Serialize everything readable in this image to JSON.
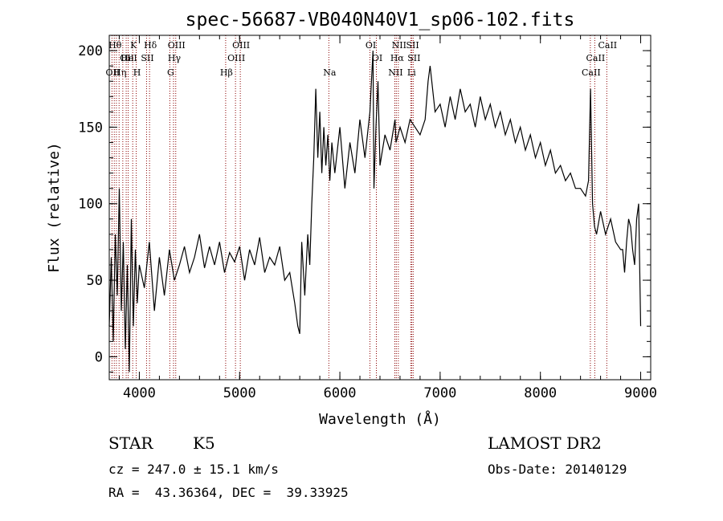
{
  "chart_data": {
    "type": "line",
    "title": "spec-56687-VB040N40V1_sp06-102.fits",
    "xlabel": "Wavelength (Å)",
    "ylabel": "Flux (relative)",
    "xlim": [
      3700,
      9100
    ],
    "ylim": [
      -15,
      210
    ],
    "xticks": [
      4000,
      5000,
      6000,
      7000,
      8000,
      9000
    ],
    "yticks": [
      0,
      50,
      100,
      150,
      200
    ],
    "grid": false,
    "series": [
      {
        "x": [
          3700,
          3720,
          3740,
          3760,
          3780,
          3800,
          3820,
          3840,
          3860,
          3880,
          3900,
          3920,
          3940,
          3960,
          3980,
          4000,
          4050,
          4100,
          4150,
          4200,
          4250,
          4300,
          4350,
          4400,
          4450,
          4500,
          4550,
          4600,
          4650,
          4700,
          4750,
          4800,
          4850,
          4900,
          4950,
          5000,
          5050,
          5100,
          5150,
          5200,
          5250,
          5300,
          5350,
          5400,
          5450,
          5500,
          5550,
          5580,
          5600,
          5620,
          5650,
          5680,
          5700,
          5720,
          5740,
          5760,
          5780,
          5800,
          5820,
          5840,
          5860,
          5880,
          5900,
          5920,
          5950,
          6000,
          6050,
          6100,
          6150,
          6200,
          6250,
          6300,
          6330,
          6340,
          6360,
          6380,
          6400,
          6450,
          6500,
          6550,
          6560,
          6600,
          6650,
          6700,
          6750,
          6800,
          6850,
          6880,
          6900,
          6950,
          7000,
          7050,
          7100,
          7150,
          7200,
          7250,
          7300,
          7350,
          7400,
          7450,
          7500,
          7550,
          7600,
          7650,
          7700,
          7750,
          7800,
          7850,
          7900,
          7950,
          8000,
          8050,
          8100,
          8150,
          8200,
          8250,
          8300,
          8350,
          8400,
          8450,
          8480,
          8500,
          8520,
          8540,
          8560,
          8600,
          8650,
          8700,
          8750,
          8800,
          8820,
          8840,
          8860,
          8880,
          8900,
          8920,
          8940,
          8960,
          8980,
          9000
        ],
        "y": [
          20,
          65,
          10,
          80,
          40,
          110,
          30,
          75,
          5,
          60,
          -10,
          90,
          20,
          70,
          35,
          60,
          45,
          75,
          30,
          65,
          40,
          70,
          50,
          60,
          72,
          55,
          65,
          80,
          58,
          72,
          60,
          75,
          55,
          68,
          62,
          72,
          50,
          70,
          60,
          78,
          55,
          65,
          60,
          72,
          50,
          55,
          35,
          20,
          15,
          75,
          40,
          80,
          60,
          100,
          130,
          175,
          130,
          160,
          120,
          150,
          125,
          145,
          115,
          140,
          120,
          150,
          110,
          140,
          120,
          155,
          130,
          160,
          200,
          110,
          150,
          180,
          125,
          145,
          135,
          155,
          140,
          150,
          140,
          155,
          150,
          145,
          155,
          180,
          190,
          160,
          165,
          150,
          170,
          155,
          175,
          160,
          165,
          150,
          170,
          155,
          165,
          150,
          160,
          145,
          155,
          140,
          150,
          135,
          145,
          130,
          140,
          125,
          135,
          120,
          125,
          115,
          120,
          110,
          110,
          105,
          115,
          175,
          100,
          85,
          80,
          95,
          80,
          90,
          75,
          70,
          70,
          55,
          75,
          90,
          85,
          70,
          60,
          90,
          100,
          20
        ]
      }
    ]
  },
  "lines": [
    {
      "wl": 3727,
      "top": "OII",
      "row": 3
    },
    {
      "wl": 3750,
      "top": "Hθ",
      "row": 1
    },
    {
      "wl": 3771,
      "top": "",
      "row": 0
    },
    {
      "wl": 3798,
      "top": "Hη",
      "row": 3
    },
    {
      "wl": 3835,
      "top": "",
      "row": 0
    },
    {
      "wl": 3869,
      "top": "OII",
      "row": 2
    },
    {
      "wl": 3889,
      "top": "HeI",
      "row": 2
    },
    {
      "wl": 3934,
      "top": "K",
      "row": 1
    },
    {
      "wl": 3969,
      "top": "H",
      "row": 3
    },
    {
      "wl": 4072,
      "top": "SII",
      "row": 2
    },
    {
      "wl": 4102,
      "top": "Hδ",
      "row": 1
    },
    {
      "wl": 4304,
      "top": "G",
      "row": 3
    },
    {
      "wl": 4341,
      "top": "Hγ",
      "row": 2
    },
    {
      "wl": 4363,
      "top": "OIII",
      "row": 1
    },
    {
      "wl": 4861,
      "top": "Hβ",
      "row": 3
    },
    {
      "wl": 4959,
      "top": "OIII",
      "row": 2
    },
    {
      "wl": 5007,
      "top": "OIII",
      "row": 1
    },
    {
      "wl": 5890,
      "top": "Na",
      "row": 3
    },
    {
      "wl": 6300,
      "top": "OI",
      "row": 1
    },
    {
      "wl": 6364,
      "top": "OI",
      "row": 2
    },
    {
      "wl": 6548,
      "top": "NII",
      "row": 3
    },
    {
      "wl": 6563,
      "top": "Hα",
      "row": 2
    },
    {
      "wl": 6583,
      "top": "NII",
      "row": 1
    },
    {
      "wl": 6707,
      "top": "Li",
      "row": 3
    },
    {
      "wl": 6717,
      "top": "SII",
      "row": 1
    },
    {
      "wl": 6731,
      "top": "SII",
      "row": 2
    },
    {
      "wl": 8498,
      "top": "CaII",
      "row": 3
    },
    {
      "wl": 8542,
      "top": "CaII",
      "row": 2
    },
    {
      "wl": 8662,
      "top": "CaII",
      "row": 1
    }
  ],
  "info": {
    "class": "STAR",
    "subclass": "K5",
    "survey": "LAMOST DR2",
    "cz": "cz = 247.0 ± 15.1 km/s",
    "obsdate": "Obs-Date: 20140129",
    "radec": "RA =  43.36364, DEC =  39.33925"
  },
  "colors": {
    "spectrum": "#000000",
    "lines": "#8b0000",
    "axes": "#000000"
  }
}
